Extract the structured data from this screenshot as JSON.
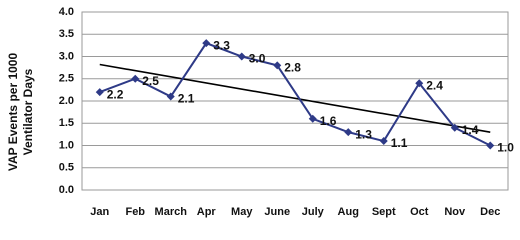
{
  "chart_data": {
    "type": "line",
    "ylabel": [
      "VAP Events per 1000",
      "Ventilator Days"
    ],
    "categories": [
      "Jan",
      "Feb",
      "March",
      "Apr",
      "May",
      "June",
      "July",
      "Aug",
      "Sept",
      "Oct",
      "Nov",
      "Dec"
    ],
    "series": [
      {
        "color": "#2e3a87",
        "values": [
          2.2,
          2.5,
          2.1,
          3.3,
          3.0,
          2.8,
          1.6,
          1.3,
          1.1,
          2.4,
          1.4,
          1.0
        ],
        "value_labels": [
          "2.2",
          "2.5",
          "2.1",
          "3.3",
          "3.0",
          "2.8",
          "1.6",
          "1.3",
          "1.1",
          "2.4",
          "1.4",
          "1.0"
        ]
      }
    ],
    "trendline": {
      "color": "#000000",
      "values": [
        2.82,
        1.3
      ]
    },
    "ylim": [
      0,
      4
    ],
    "yticks": [
      {
        "value": 0,
        "label": "0.0"
      },
      0.5,
      {
        "value": 1,
        "label": "1.0"
      },
      1.5,
      {
        "value": 2,
        "label": "2.0"
      },
      2.5,
      {
        "value": 3,
        "label": "3.0"
      },
      3.5,
      {
        "value": 4,
        "label": "4.0"
      }
    ],
    "grid": true
  }
}
